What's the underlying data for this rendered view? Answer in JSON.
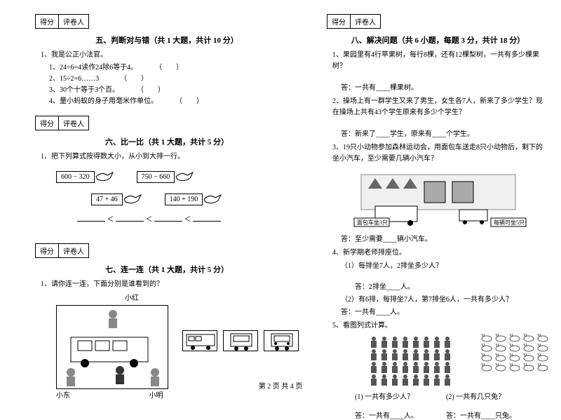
{
  "scoreLabels": {
    "score": "得分",
    "grader": "评卷人"
  },
  "section5": {
    "title": "五、判断对与错（共 1 大题，共计 10 分）",
    "q1": "1、我是公正小法官。",
    "items": [
      "1、24÷6=4读作24除6等于4。",
      "2、15÷2=6……3",
      "3、30个十等于3个百。",
      "4、量小蚂蚁的身子用毫米作单位。"
    ],
    "paren": "（　　）"
  },
  "section6": {
    "title": "六、比一比（共 1 大题，共计 5 分）",
    "q1": "1、把下列算式按得数大小，从小到大排一行。",
    "exprs": [
      "600 − 320",
      "750 − 660",
      "47 + 46",
      "140 + 190"
    ],
    "lt": "＜"
  },
  "section7": {
    "title": "七、连一连（共 1 大题，共计 5 分）",
    "q1": "1、请你连一连，下面分别是谁看到的？",
    "labels": {
      "top": "小红",
      "left": "小东",
      "right": "小明"
    }
  },
  "section8": {
    "title": "八、解决问题（共 6 小题，每题 3 分，共计 18 分）",
    "q1": "1、果园里有4行苹果树，每行8棵，还有12棵梨树，一共有多少棵果树？",
    "a1": "答：一共有____棵果树。",
    "q2": "2、操场上有一群学生又来了男生，女生各7人，新来了多少学生？现在操场上共有43个学生原来有多少个学生？",
    "a2": "答：新来了____学生，原来有____个学生。",
    "q3": "3、19只小动物参加森林运动会，用面包车送走8只小动物后，剩下的坐小汽车，至少需要几辆小汽车？",
    "sceneLabels": {
      "left": "面包车坐3只",
      "right": "每辆可坐5只"
    },
    "a3": "答：至少需要____辆小汽车。",
    "q4": "4、新学期老师排座位。",
    "q4_1": "（1）每排坐7人，2排坐多少人？",
    "a4_1": "答：2排坐____人。",
    "q4_2": "（2）有6排，每排坐7人，第7排坐6人，一共有多少人？",
    "a4_2": "答：一共有____人。",
    "q5": "5、看图列式计算。",
    "q5_1": "(1) 一共有多少人？",
    "q5_2": "(2) 一共有几只兔？",
    "a5_1": "答：一共有____人。",
    "a5_2": "答：一共有____只兔。"
  },
  "footer": "第 2 页 共 4 页",
  "colors": {
    "text": "#000000",
    "bg": "#ffffff",
    "gray": "#888888"
  }
}
